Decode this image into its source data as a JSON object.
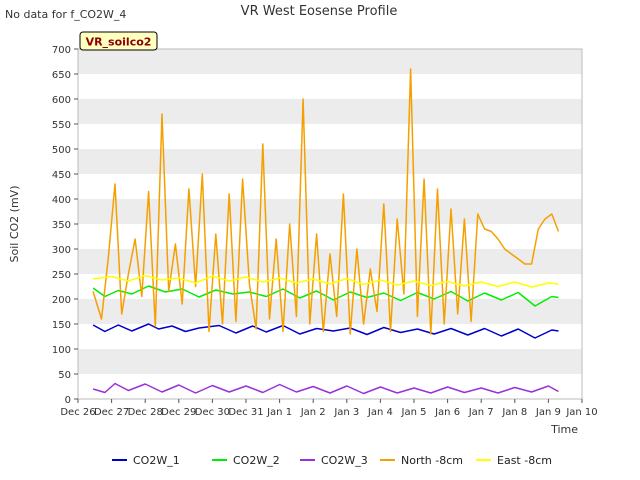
{
  "title": "VR West Eosense Profile",
  "nodata_note": "No data for f_CO2W_4",
  "site_badge": "VR_soilco2",
  "colors": {
    "CO2W_1": "#0000cc",
    "CO2W_2": "#00ee00",
    "CO2W_3": "#9b30d9",
    "North -8cm": "#f5a000",
    "East -8cm": "#ffff00",
    "band": "#ececec",
    "badge_fill": "#ffffc0",
    "badge_text": "#8b0000"
  },
  "chart_data": {
    "type": "line",
    "xlabel": "Time",
    "ylabel": "Soil CO2 (mV)",
    "ylim": [
      0,
      700
    ],
    "yticks": [
      0,
      50,
      100,
      150,
      200,
      250,
      300,
      350,
      400,
      450,
      500,
      550,
      600,
      650,
      700
    ],
    "xlim": [
      "Dec 26",
      "Jan 10"
    ],
    "xtick_labels": [
      "Dec 26",
      "Dec 27",
      "Dec 28",
      "Dec 29",
      "Dec 30",
      "Dec 31",
      "Jan 1",
      "Jan 2",
      "Jan 3",
      "Jan 4",
      "Jan 5",
      "Jan 6",
      "Jan 7",
      "Jan 8",
      "Jan 9",
      "Jan 10"
    ],
    "grid": "horizontal bands",
    "legend_position": "bottom",
    "series": [
      {
        "name": "CO2W_1",
        "x": [
          0.45,
          0.8,
          1.2,
          1.6,
          2.1,
          2.4,
          2.8,
          3.2,
          3.6,
          4.2,
          4.7,
          5.2,
          5.6,
          6.1,
          6.6,
          7.1,
          7.6,
          8.1,
          8.6,
          9.1,
          9.6,
          10.1,
          10.6,
          11.1,
          11.6,
          12.1,
          12.6,
          13.1,
          13.6,
          14.1,
          14.3
        ],
        "y": [
          148,
          135,
          148,
          136,
          150,
          140,
          146,
          135,
          142,
          147,
          132,
          146,
          134,
          147,
          130,
          141,
          136,
          142,
          129,
          143,
          133,
          140,
          130,
          141,
          128,
          141,
          126,
          140,
          122,
          138,
          136
        ]
      },
      {
        "name": "CO2W_2",
        "x": [
          0.45,
          0.8,
          1.2,
          1.6,
          2.1,
          2.6,
          3.1,
          3.6,
          4.1,
          4.6,
          5.1,
          5.6,
          6.1,
          6.6,
          7.1,
          7.6,
          8.1,
          8.6,
          9.1,
          9.6,
          10.1,
          10.6,
          11.1,
          11.6,
          12.1,
          12.6,
          13.1,
          13.6,
          14.1,
          14.3
        ],
        "y": [
          222,
          205,
          217,
          210,
          226,
          214,
          220,
          204,
          218,
          210,
          214,
          205,
          220,
          202,
          216,
          198,
          214,
          203,
          212,
          197,
          213,
          200,
          215,
          196,
          212,
          198,
          213,
          186,
          205,
          203
        ]
      },
      {
        "name": "CO2W_3",
        "x": [
          0.45,
          0.8,
          1.1,
          1.5,
          2.0,
          2.5,
          3.0,
          3.5,
          4.0,
          4.5,
          5.0,
          5.5,
          6.0,
          6.5,
          7.0,
          7.5,
          8.0,
          8.5,
          9.0,
          9.5,
          10.0,
          10.5,
          11.0,
          11.5,
          12.0,
          12.5,
          13.0,
          13.5,
          14.0,
          14.3
        ],
        "y": [
          20,
          13,
          31,
          17,
          30,
          14,
          28,
          12,
          27,
          14,
          26,
          13,
          29,
          14,
          25,
          12,
          26,
          11,
          24,
          12,
          22,
          12,
          24,
          13,
          22,
          12,
          23,
          14,
          26,
          15
        ]
      },
      {
        "name": "North -8cm",
        "x": [
          0.45,
          0.7,
          0.9,
          1.1,
          1.3,
          1.5,
          1.7,
          1.9,
          2.1,
          2.3,
          2.5,
          2.7,
          2.9,
          3.1,
          3.3,
          3.5,
          3.7,
          3.9,
          4.1,
          4.3,
          4.5,
          4.7,
          4.9,
          5.1,
          5.3,
          5.5,
          5.7,
          5.9,
          6.1,
          6.3,
          6.5,
          6.7,
          6.9,
          7.1,
          7.3,
          7.5,
          7.7,
          7.9,
          8.1,
          8.3,
          8.5,
          8.7,
          8.9,
          9.1,
          9.3,
          9.5,
          9.7,
          9.9,
          10.1,
          10.3,
          10.5,
          10.7,
          10.9,
          11.1,
          11.3,
          11.5,
          11.7,
          11.9,
          12.1,
          12.3,
          12.5,
          12.7,
          12.9,
          13.1,
          13.3,
          13.5,
          13.7,
          13.9,
          14.1,
          14.3
        ],
        "y": [
          215,
          160,
          280,
          430,
          170,
          250,
          320,
          205,
          415,
          145,
          570,
          215,
          310,
          190,
          420,
          225,
          450,
          135,
          330,
          150,
          410,
          155,
          440,
          230,
          140,
          510,
          160,
          320,
          135,
          350,
          165,
          600,
          150,
          330,
          135,
          290,
          165,
          410,
          130,
          300,
          150,
          260,
          175,
          390,
          135,
          360,
          210,
          660,
          165,
          440,
          130,
          420,
          150,
          380,
          170,
          360,
          155,
          370,
          340,
          335,
          320,
          300,
          290,
          280,
          270,
          270,
          340,
          360,
          370,
          335
        ]
      },
      {
        "name": "East -8cm",
        "x": [
          0.45,
          1.0,
          1.5,
          2.0,
          2.5,
          3.0,
          3.5,
          4.0,
          4.5,
          5.0,
          5.5,
          6.0,
          6.5,
          7.0,
          7.5,
          8.0,
          8.5,
          9.0,
          9.5,
          10.0,
          10.5,
          11.0,
          11.5,
          12.0,
          12.5,
          13.0,
          13.5,
          14.0,
          14.3
        ],
        "y": [
          240,
          245,
          236,
          247,
          238,
          242,
          232,
          246,
          236,
          244,
          234,
          242,
          232,
          240,
          230,
          241,
          229,
          238,
          228,
          236,
          227,
          235,
          226,
          234,
          225,
          234,
          224,
          232,
          230
        ]
      }
    ]
  }
}
